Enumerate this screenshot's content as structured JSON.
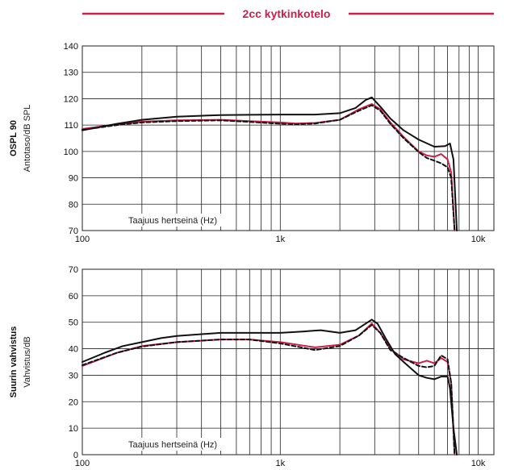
{
  "colors": {
    "accent": "#cc1f4a",
    "black": "#111111",
    "grid": "#222222"
  },
  "header": {
    "title": "2cc kytkinkotelo"
  },
  "chart_data": [
    {
      "type": "line",
      "label_bold": "OSPL 90",
      "ylabel": "Antotaso/dB SPL",
      "xlabel": "Taajuus hertseinä (Hz)",
      "xscale": "log",
      "xlim": [
        100,
        12000
      ],
      "ylim": [
        70,
        140
      ],
      "yticks": [
        "70",
        "80",
        "90",
        "100",
        "110",
        "120",
        "130",
        "140"
      ],
      "xticks": [
        {
          "value": 100,
          "label": "100"
        },
        {
          "value": 1000,
          "label": "1k"
        },
        {
          "value": 10000,
          "label": "10k"
        }
      ],
      "series": [
        {
          "style": "solid",
          "color": "#111111",
          "x": [
            100,
            150,
            200,
            300,
            500,
            700,
            1000,
            1500,
            2000,
            2400,
            2700,
            2900,
            3200,
            3600,
            4200,
            5000,
            6000,
            6800,
            7200,
            7500,
            7800
          ],
          "y": [
            108,
            110.5,
            112,
            113.2,
            113.8,
            113.9,
            114,
            114,
            114.5,
            116.5,
            119.5,
            120.5,
            117,
            112.5,
            108,
            104.5,
            101.8,
            102,
            103,
            97,
            70
          ]
        },
        {
          "style": "solid",
          "color": "#cc1f4a",
          "x": [
            100,
            150,
            200,
            300,
            500,
            700,
            1000,
            1200,
            1500,
            2000,
            2500,
            2900,
            3200,
            3600,
            4200,
            5000,
            5500,
            6000,
            6500,
            7000,
            7300,
            7600
          ],
          "y": [
            108.5,
            110.3,
            111.3,
            111.8,
            112,
            111.5,
            111,
            110.6,
            110.8,
            112,
            116,
            118,
            116,
            111,
            105.5,
            100,
            98.5,
            98,
            99,
            97,
            92,
            70
          ]
        },
        {
          "style": "dashed",
          "color": "#111111",
          "x": [
            100,
            150,
            200,
            300,
            500,
            700,
            1000,
            1200,
            1500,
            2000,
            2500,
            2900,
            3200,
            3600,
            4200,
            5000,
            5500,
            6000,
            6500,
            7000,
            7300,
            7600
          ],
          "y": [
            108.2,
            110,
            111,
            111.5,
            111.8,
            111.2,
            110.5,
            110.3,
            110.6,
            112,
            115.5,
            117.5,
            115.5,
            110.5,
            105,
            99.8,
            97.5,
            96.5,
            95.5,
            94,
            90,
            70
          ]
        }
      ]
    },
    {
      "type": "line",
      "label_bold": "Suurin vahvistus",
      "ylabel": "Vahvistus/dB",
      "xlabel": "Taajuus hertseinä (Hz)",
      "xscale": "log",
      "xlim": [
        100,
        12000
      ],
      "ylim": [
        0,
        70
      ],
      "yticks": [
        "0",
        "10",
        "20",
        "30",
        "40",
        "50",
        "60",
        "70"
      ],
      "xticks": [
        {
          "value": 100,
          "label": "100"
        },
        {
          "value": 1000,
          "label": "1k"
        },
        {
          "value": 10000,
          "label": "10k"
        }
      ],
      "series": [
        {
          "style": "solid",
          "color": "#111111",
          "x": [
            100,
            130,
            160,
            200,
            250,
            300,
            400,
            500,
            700,
            1000,
            1300,
            1600,
            2000,
            2400,
            2700,
            2900,
            3100,
            3400,
            3800,
            4200,
            5000,
            5500,
            6000,
            6500,
            7000,
            7200,
            7500,
            7800
          ],
          "y": [
            35,
            38.5,
            41,
            42.5,
            44,
            44.8,
            45.5,
            46,
            46,
            46,
            46.5,
            47,
            46,
            47,
            49.5,
            51,
            49.5,
            44,
            38,
            35,
            30,
            29,
            28.5,
            29.5,
            29.5,
            25,
            10,
            0
          ]
        },
        {
          "style": "solid",
          "color": "#cc1f4a",
          "x": [
            100,
            150,
            200,
            300,
            500,
            700,
            1000,
            1500,
            2000,
            2500,
            2900,
            3200,
            3600,
            4200,
            5000,
            5500,
            6000,
            6500,
            7000,
            7300,
            7600
          ],
          "y": [
            33.5,
            38.5,
            41,
            42.5,
            43.5,
            43.5,
            42.5,
            40.5,
            41.5,
            45,
            49.5,
            46,
            40,
            36,
            34.5,
            35.5,
            34.5,
            36.5,
            35,
            27,
            0
          ]
        },
        {
          "style": "dashed",
          "color": "#111111",
          "x": [
            100,
            150,
            200,
            300,
            500,
            700,
            1000,
            1500,
            2000,
            2500,
            2900,
            3200,
            3600,
            4200,
            5000,
            5500,
            6000,
            6500,
            7000,
            7300,
            7600
          ],
          "y": [
            33.8,
            38.5,
            40.8,
            42.5,
            43.5,
            43.5,
            42,
            39.5,
            41,
            45,
            49,
            46,
            39.5,
            36.5,
            33.5,
            33,
            33.5,
            37.5,
            36,
            27,
            0
          ]
        }
      ]
    }
  ]
}
